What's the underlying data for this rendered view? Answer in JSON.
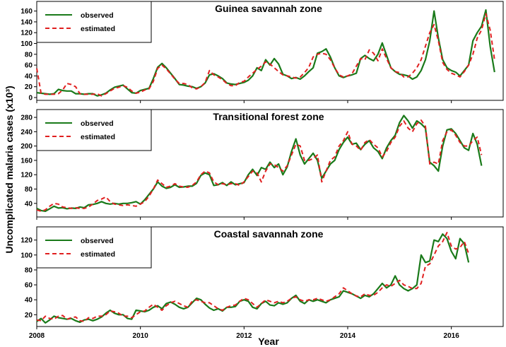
{
  "chart_data": {
    "type": "line",
    "xlabel": "Year",
    "ylabel": "Uncomplicated malaria cases (x10³)",
    "x_ticks": [
      "2008",
      "2010",
      "2012",
      "2014",
      "2016"
    ],
    "x_range": [
      2008,
      2017
    ],
    "grid": false,
    "legend_placement": "top-left",
    "colors": {
      "observed": "#1a7a1a",
      "estimated": "#e02020"
    },
    "panels": [
      {
        "title": "Guinea savannah zone",
        "ylim": [
          0,
          170
        ],
        "y_ticks": [
          0,
          20,
          40,
          60,
          80,
          100,
          120,
          140,
          160
        ],
        "x_start": 2008,
        "x_step": 0.08333,
        "series": [
          {
            "name": "observed",
            "values": [
              9,
              8,
              7,
              6,
              7,
              15,
              13,
              12,
              12,
              7,
              7,
              6,
              7,
              7,
              3,
              5,
              8,
              14,
              19,
              21,
              23,
              16,
              9,
              8,
              13,
              15,
              17,
              35,
              56,
              63,
              55,
              45,
              35,
              24,
              23,
              21,
              20,
              17,
              20,
              27,
              42,
              44,
              40,
              35,
              27,
              25,
              24,
              26,
              28,
              32,
              40,
              55,
              50,
              70,
              60,
              72,
              62,
              43,
              40,
              35,
              37,
              34,
              40,
              48,
              55,
              82,
              85,
              90,
              75,
              55,
              40,
              37,
              40,
              42,
              45,
              72,
              78,
              72,
              68,
              80,
              101,
              78,
              55,
              48,
              43,
              42,
              40,
              34,
              38,
              50,
              70,
              105,
              160,
              110,
              70,
              55,
              50,
              47,
              40,
              50,
              60,
              105,
              120,
              132,
              162,
              95,
              47
            ]
          },
          {
            "name": "estimated",
            "values": [
              54,
              8,
              6,
              6,
              6,
              7,
              14,
              26,
              24,
              20,
              7,
              6,
              6,
              6,
              7,
              3,
              7,
              12,
              17,
              19,
              22,
              19,
              12,
              8,
              10,
              14,
              16,
              30,
              54,
              60,
              53,
              44,
              34,
              26,
              26,
              24,
              18,
              16,
              20,
              28,
              50,
              42,
              38,
              33,
              26,
              22,
              22,
              28,
              30,
              38,
              45,
              52,
              58,
              66,
              62,
              55,
              48,
              42,
              40,
              38,
              36,
              38,
              46,
              56,
              75,
              80,
              82,
              80,
              70,
              55,
              42,
              38,
              40,
              44,
              58,
              72,
              70,
              88,
              82,
              68,
              90,
              72,
              55,
              48,
              46,
              38,
              38,
              45,
              55,
              70,
              95,
              120,
              135,
              105,
              65,
              52,
              45,
              42,
              38,
              48,
              60,
              80,
              110,
              125,
              155,
              125,
              70
            ]
          }
        ]
      },
      {
        "title": "Transitional forest zone",
        "ylim": [
          10,
          290
        ],
        "y_ticks": [
          40,
          80,
          120,
          160,
          200,
          240,
          280
        ],
        "x_start": 2008,
        "x_step": 0.08333,
        "series": [
          {
            "name": "observed",
            "values": [
              26,
              20,
              18,
              25,
              32,
              27,
              28,
              25,
              27,
              26,
              30,
              28,
              36,
              37,
              40,
              45,
              40,
              38,
              40,
              38,
              40,
              40,
              42,
              45,
              38,
              50,
              65,
              80,
              100,
              88,
              82,
              85,
              92,
              85,
              86,
              88,
              88,
              96,
              118,
              125,
              120,
              90,
              92,
              98,
              90,
              100,
              92,
              95,
              98,
              120,
              135,
              118,
              140,
              135,
              155,
              140,
              150,
              120,
              142,
              185,
              220,
              175,
              150,
              165,
              180,
              160,
              110,
              130,
              150,
              160,
              190,
              210,
              225,
              205,
              208,
              190,
              205,
              215,
              195,
              185,
              165,
              195,
              215,
              230,
              265,
              285,
              270,
              250,
              270,
              262,
              250,
              155,
              145,
              130,
              200,
              245,
              248,
              235,
              215,
              195,
              188,
              235,
              205,
              145
            ]
          },
          {
            "name": "estimated",
            "values": [
              22,
              18,
              22,
              32,
              40,
              38,
              30,
              28,
              26,
              28,
              26,
              26,
              30,
              38,
              48,
              52,
              58,
              45,
              38,
              36,
              34,
              36,
              34,
              32,
              38,
              45,
              60,
              80,
              105,
              95,
              85,
              88,
              95,
              88,
              86,
              85,
              90,
              100,
              120,
              130,
              125,
              100,
              92,
              95,
              92,
              95,
              95,
              90,
              100,
              115,
              130,
              125,
              100,
              130,
              150,
              148,
              140,
              130,
              145,
              175,
              205,
              200,
              160,
              160,
              165,
              175,
              100,
              130,
              160,
              170,
              200,
              215,
              240,
              205,
              200,
              188,
              210,
              218,
              205,
              195,
              170,
              185,
              210,
              225,
              255,
              270,
              250,
              240,
              262,
              272,
              255,
              150,
              155,
              150,
              215,
              240,
              245,
              230,
              210,
              200,
              200,
              215,
              225,
              175
            ]
          }
        ]
      },
      {
        "title": "Coastal savannah zone",
        "ylim": [
          8,
          132
        ],
        "y_ticks": [
          20,
          40,
          60,
          80,
          100,
          120
        ],
        "x_start": 2008,
        "x_step": 0.08333,
        "series": [
          {
            "name": "observed",
            "values": [
              11,
              15,
              9,
              13,
              18,
              16,
              15,
              14,
              15,
              12,
              10,
              13,
              14,
              12,
              14,
              17,
              22,
              26,
              22,
              20,
              20,
              15,
              14,
              26,
              25,
              24,
              26,
              30,
              32,
              28,
              35,
              37,
              34,
              30,
              28,
              30,
              36,
              42,
              40,
              34,
              29,
              26,
              28,
              25,
              30,
              30,
              31,
              38,
              40,
              38,
              30,
              28,
              35,
              38,
              33,
              32,
              36,
              34,
              36,
              42,
              46,
              38,
              35,
              40,
              38,
              40,
              38,
              36,
              40,
              42,
              44,
              52,
              50,
              48,
              45,
              42,
              46,
              44,
              48,
              55,
              62,
              56,
              60,
              72,
              60,
              55,
              52,
              55,
              60,
              100,
              90,
              92,
              120,
              118,
              128,
              122,
              105,
              95,
              122,
              115,
              90
            ]
          },
          {
            "name": "estimated",
            "values": [
              13,
              12,
              18,
              15,
              14,
              18,
              19,
              14,
              16,
              17,
              12,
              11,
              16,
              15,
              18,
              18,
              20,
              25,
              24,
              22,
              18,
              18,
              16,
              20,
              24,
              25,
              30,
              34,
              30,
              26,
              32,
              36,
              38,
              35,
              32,
              30,
              38,
              40,
              38,
              36,
              36,
              32,
              28,
              26,
              30,
              32,
              33,
              38,
              42,
              40,
              35,
              30,
              35,
              40,
              38,
              36,
              38,
              36,
              38,
              42,
              44,
              40,
              38,
              40,
              40,
              42,
              40,
              38,
              40,
              44,
              48,
              56,
              52,
              48,
              45,
              44,
              48,
              46,
              46,
              50,
              56,
              60,
              58,
              62,
              66,
              60,
              58,
              55,
              55,
              62,
              85,
              88,
              100,
              112,
              118,
              130,
              112,
              108,
              110,
              118,
              102
            ]
          }
        ]
      }
    ]
  }
}
